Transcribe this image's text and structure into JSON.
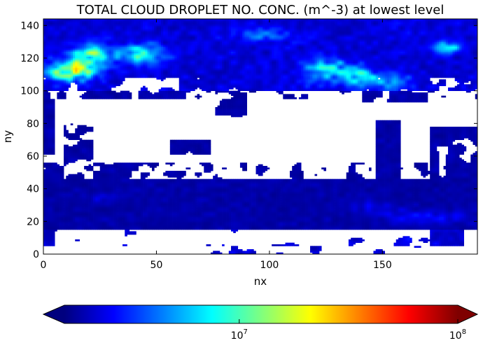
{
  "chart_data": {
    "type": "heatmap",
    "title": "TOTAL CLOUD DROPLET NO. CONC. (m^-3) at lowest level",
    "xlabel": "nx",
    "ylabel": "ny",
    "xlim": [
      0,
      192
    ],
    "ylim": [
      0,
      144
    ],
    "xticks": [
      0,
      50,
      100,
      150
    ],
    "yticks": [
      0,
      20,
      40,
      60,
      80,
      100,
      120,
      140
    ],
    "colormap": "jet",
    "colorbar": {
      "orientation": "horizontal",
      "scale": "log",
      "extend": "both",
      "ticks": [
        {
          "value": 10000000,
          "label_base": "10",
          "label_exp": "7"
        },
        {
          "value": 100000000,
          "label_base": "10",
          "label_exp": "8"
        }
      ]
    },
    "field_description": {
      "masked_value": "white (no data / zero)",
      "low_values_color": "#00008f",
      "high_values_color": "#800000"
    }
  },
  "colors": {
    "background": "#ffffff",
    "axes": "#000000",
    "masked": "#ffffff",
    "jet": [
      "#00007f",
      "#0000ff",
      "#007fff",
      "#00ffff",
      "#7fff7f",
      "#ffff00",
      "#ff7f00",
      "#ff0000",
      "#7f0000"
    ]
  }
}
